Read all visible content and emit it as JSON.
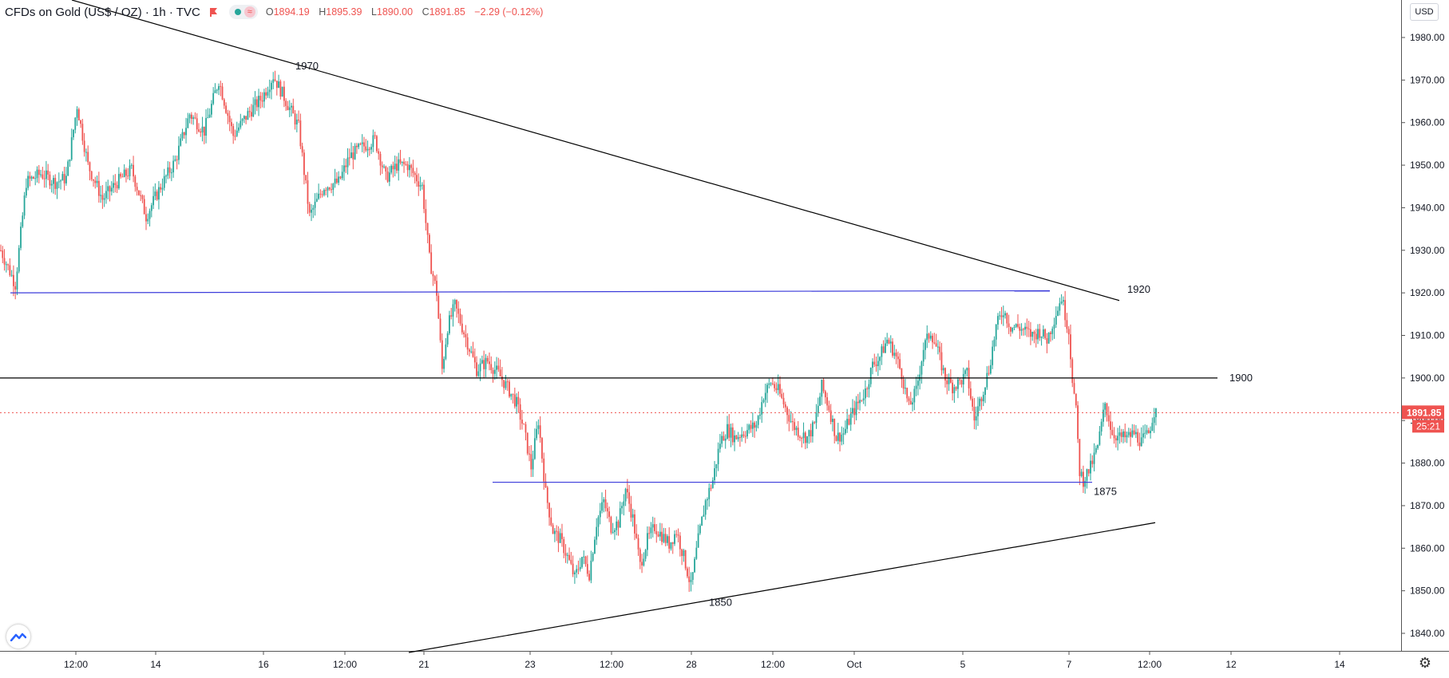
{
  "header": {
    "symbol": "CFDs on Gold (US$ / OZ) · 1h · TVC",
    "open_label": "O",
    "open": "1894.19",
    "high_label": "H",
    "high": "1895.39",
    "low_label": "L",
    "low": "1890.00",
    "close_label": "C",
    "close": "1891.85",
    "change": "−2.29 (−0.12%)"
  },
  "currency_button": "USD",
  "icons": {
    "logo": "tradingview-logo-icon",
    "settings": "gear-icon",
    "flag": "flag-icon"
  },
  "colors": {
    "up": "#26a69a",
    "down": "#ef5350",
    "support_resistance": "#3d3ddb",
    "trendline": "#000000",
    "price_line": "#ef5350"
  },
  "chart_data": {
    "type": "candlestick",
    "title": "CFDs on Gold (US$ / OZ)",
    "interval": "1h",
    "y_axis": {
      "ticks": [
        1840,
        1850,
        1860,
        1870,
        1880,
        1890,
        1900,
        1910,
        1920,
        1930,
        1940,
        1950,
        1960,
        1970,
        1980
      ],
      "tick_labels": [
        "1840.00",
        "1850.00",
        "1860.00",
        "1870.00",
        "1880.00",
        "1890.00",
        "1900.00",
        "1910.00",
        "1920.00",
        "1930.00",
        "1940.00",
        "1950.00",
        "1960.00",
        "1970.00",
        "1980.00"
      ],
      "range": [
        1835,
        1995
      ]
    },
    "x_axis": {
      "tick_labels": [
        "12:00",
        "14",
        "16",
        "12:00",
        "21",
        "23",
        "12:00",
        "28",
        "12:00",
        "Oct",
        "5",
        "7",
        "12:00",
        "12",
        "14"
      ]
    },
    "last_price": "1891.85",
    "countdown": "25:21",
    "annotations": [
      "1970",
      "1920",
      "1900",
      "1875",
      "1850"
    ],
    "price_path": [
      [
        0,
        1930
      ],
      [
        8,
        1922
      ],
      [
        14,
        1946
      ],
      [
        22,
        1948
      ],
      [
        30,
        1946
      ],
      [
        36,
        1947
      ],
      [
        42,
        1964
      ],
      [
        48,
        1950
      ],
      [
        56,
        1942
      ],
      [
        64,
        1946
      ],
      [
        72,
        1949
      ],
      [
        80,
        1938
      ],
      [
        88,
        1945
      ],
      [
        96,
        1951
      ],
      [
        104,
        1962
      ],
      [
        112,
        1958
      ],
      [
        120,
        1970
      ],
      [
        128,
        1957
      ],
      [
        136,
        1962
      ],
      [
        144,
        1966
      ],
      [
        150,
        1971
      ],
      [
        156,
        1966
      ],
      [
        164,
        1959
      ],
      [
        170,
        1938
      ],
      [
        178,
        1945
      ],
      [
        186,
        1946
      ],
      [
        192,
        1952
      ],
      [
        198,
        1954
      ],
      [
        206,
        1956
      ],
      [
        212,
        1947
      ],
      [
        218,
        1950
      ],
      [
        224,
        1950
      ],
      [
        232,
        1945
      ],
      [
        236,
        1928
      ],
      [
        240,
        1920
      ],
      [
        243,
        1902
      ],
      [
        246,
        1912
      ],
      [
        250,
        1917
      ],
      [
        254,
        1912
      ],
      [
        258,
        1907
      ],
      [
        262,
        1902
      ],
      [
        268,
        1904
      ],
      [
        274,
        1901
      ],
      [
        280,
        1897
      ],
      [
        284,
        1894
      ],
      [
        288,
        1888
      ],
      [
        292,
        1879
      ],
      [
        296,
        1890
      ],
      [
        300,
        1873
      ],
      [
        304,
        1864
      ],
      [
        308,
        1862
      ],
      [
        312,
        1858
      ],
      [
        316,
        1853
      ],
      [
        320,
        1858
      ],
      [
        324,
        1854
      ],
      [
        328,
        1866
      ],
      [
        332,
        1871
      ],
      [
        336,
        1865
      ],
      [
        340,
        1866
      ],
      [
        344,
        1874
      ],
      [
        348,
        1867
      ],
      [
        352,
        1856
      ],
      [
        356,
        1862
      ],
      [
        360,
        1865
      ],
      [
        364,
        1863
      ],
      [
        368,
        1861
      ],
      [
        372,
        1864
      ],
      [
        376,
        1858
      ],
      [
        380,
        1851
      ],
      [
        384,
        1862
      ],
      [
        388,
        1871
      ],
      [
        392,
        1876
      ],
      [
        396,
        1885
      ],
      [
        400,
        1888
      ],
      [
        404,
        1886
      ],
      [
        408,
        1887
      ],
      [
        412,
        1888
      ],
      [
        416,
        1889
      ],
      [
        420,
        1896
      ],
      [
        424,
        1899
      ],
      [
        428,
        1897
      ],
      [
        432,
        1893
      ],
      [
        436,
        1889
      ],
      [
        440,
        1887
      ],
      [
        444,
        1886
      ],
      [
        448,
        1889
      ],
      [
        452,
        1898
      ],
      [
        456,
        1893
      ],
      [
        460,
        1886
      ],
      [
        464,
        1887
      ],
      [
        468,
        1891
      ],
      [
        472,
        1894
      ],
      [
        476,
        1897
      ],
      [
        480,
        1903
      ],
      [
        484,
        1905
      ],
      [
        488,
        1909
      ],
      [
        492,
        1906
      ],
      [
        496,
        1901
      ],
      [
        500,
        1893
      ],
      [
        504,
        1897
      ],
      [
        508,
        1907
      ],
      [
        512,
        1911
      ],
      [
        516,
        1906
      ],
      [
        520,
        1900
      ],
      [
        524,
        1898
      ],
      [
        528,
        1899
      ],
      [
        532,
        1901
      ],
      [
        536,
        1890
      ],
      [
        540,
        1896
      ],
      [
        544,
        1902
      ],
      [
        548,
        1912
      ],
      [
        552,
        1916
      ],
      [
        556,
        1912
      ],
      [
        560,
        1912
      ],
      [
        564,
        1911
      ],
      [
        568,
        1910
      ],
      [
        572,
        1911
      ],
      [
        576,
        1909
      ],
      [
        580,
        1914
      ],
      [
        584,
        1919
      ],
      [
        588,
        1911
      ],
      [
        590,
        1900
      ],
      [
        592,
        1892
      ],
      [
        594,
        1878
      ],
      [
        596,
        1876
      ],
      [
        600,
        1879
      ],
      [
        604,
        1884
      ],
      [
        608,
        1894
      ],
      [
        612,
        1887
      ],
      [
        616,
        1886
      ],
      [
        620,
        1886
      ],
      [
        624,
        1887
      ],
      [
        628,
        1885
      ],
      [
        632,
        1887
      ],
      [
        636,
        1894
      ]
    ],
    "series": [
      {
        "name": "CFDs on Gold (US$ / OZ)",
        "ohlc_source": "price_path (hourly candles)"
      }
    ]
  }
}
